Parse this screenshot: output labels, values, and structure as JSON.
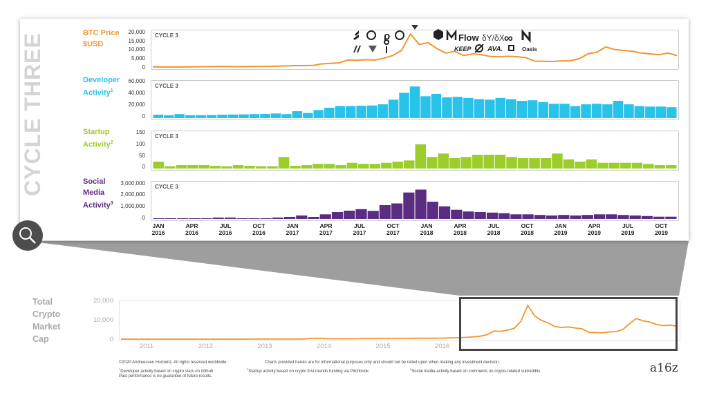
{
  "vertical_title": "CYCLE THREE",
  "cycle_tag": "CYCLE 3",
  "colors": {
    "btc": "#f0952e",
    "dev": "#29c3ea",
    "startup": "#9ccd2b",
    "social": "#5a2d82",
    "grey": "#9a9a9a"
  },
  "panels": [
    {
      "label_lines": [
        "BTC Price",
        "$USD"
      ],
      "sup": "",
      "yticks": [
        "20,000",
        "15,000",
        "10,000",
        "5,000",
        "0"
      ]
    },
    {
      "label_lines": [
        "Developer",
        "Activity"
      ],
      "sup": "1",
      "yticks": [
        "60,000",
        "40,000",
        "20,000",
        "0"
      ]
    },
    {
      "label_lines": [
        "Startup",
        "Activity"
      ],
      "sup": "2",
      "yticks": [
        "150",
        "100",
        "50",
        "0"
      ]
    },
    {
      "label_lines": [
        "Social",
        "Media",
        "Activity"
      ],
      "sup": "3",
      "yticks": [
        "3,000,000",
        "2,000,000",
        "1,000,000",
        "0"
      ]
    }
  ],
  "x_ticks": [
    [
      "JAN",
      "2016"
    ],
    [
      "APR",
      "2016"
    ],
    [
      "JUL",
      "2016"
    ],
    [
      "OCT",
      "2016"
    ],
    [
      "JAN",
      "2017"
    ],
    [
      "APR",
      "2017"
    ],
    [
      "JUL",
      "2017"
    ],
    [
      "OCT",
      "2017"
    ],
    [
      "JAN",
      "2018"
    ],
    [
      "APR",
      "2018"
    ],
    [
      "JUL",
      "2018"
    ],
    [
      "OCT",
      "2018"
    ],
    [
      "JAN",
      "2019"
    ],
    [
      "APR",
      "2019"
    ],
    [
      "JUL",
      "2019"
    ],
    [
      "OCT",
      "2019"
    ]
  ],
  "logos": {
    "flow": "Flow",
    "dydx": "δY/δX",
    "keep": "KEEP",
    "ava": "AVA.",
    "oasis": "Oasis"
  },
  "chart_data": [
    {
      "type": "line",
      "series": [
        {
          "values": [
            450,
            420,
            400,
            410,
            440,
            530,
            620,
            650,
            680,
            610,
            600,
            650,
            700,
            750,
            900,
            1000,
            1200,
            1180,
            1300,
            2200,
            2500,
            2800,
            4500,
            4300,
            4600,
            4400,
            5500,
            7000,
            10000,
            19500,
            13500,
            14500,
            11000,
            8500,
            9500,
            7000,
            8000,
            7500,
            6500,
            6300,
            6600,
            6400,
            5800,
            3800,
            3700,
            3600,
            3900,
            4000,
            5200,
            8000,
            9000,
            12000,
            10500,
            10000,
            9500,
            8500,
            8000,
            7500,
            8500,
            7000
          ]
        }
      ],
      "x_start": "2016-01",
      "x_end": "2019-12",
      "ylim": [
        0,
        20000
      ]
    },
    {
      "type": "bar",
      "values": [
        6000,
        5000,
        7000,
        5000,
        5200,
        5400,
        6000,
        6200,
        6500,
        7000,
        7200,
        8000,
        7000,
        12000,
        9000,
        14000,
        18000,
        21000,
        21000,
        21500,
        22000,
        24000,
        32000,
        44000,
        55000,
        38000,
        42000,
        36000,
        37000,
        35000,
        33000,
        32000,
        35000,
        33000,
        30000,
        31000,
        28000,
        25000,
        25000,
        21000,
        24000,
        25000,
        24000,
        30000,
        24000,
        21000,
        20000,
        20000,
        19000
      ],
      "ylim": [
        0,
        60000
      ]
    },
    {
      "type": "bar",
      "values": [
        30,
        10,
        15,
        15,
        15,
        12,
        10,
        15,
        12,
        10,
        10,
        50,
        12,
        15,
        20,
        20,
        15,
        25,
        20,
        20,
        25,
        30,
        35,
        105,
        50,
        65,
        45,
        50,
        60,
        60,
        60,
        50,
        45,
        45,
        45,
        65,
        40,
        30,
        40,
        25,
        25,
        25,
        25,
        20,
        15,
        15
      ],
      "ylim": [
        0,
        150
      ]
    },
    {
      "type": "bar",
      "values": [
        60000,
        60000,
        60000,
        60000,
        60000,
        120000,
        120000,
        60000,
        60000,
        60000,
        120000,
        180000,
        300000,
        180000,
        400000,
        600000,
        720000,
        850000,
        700000,
        1200000,
        1350000,
        2300000,
        2550000,
        1500000,
        1100000,
        800000,
        650000,
        600000,
        550000,
        500000,
        400000,
        400000,
        350000,
        300000,
        350000,
        300000,
        350000,
        400000,
        400000,
        350000,
        300000,
        250000,
        200000,
        200000
      ],
      "ylim": [
        0,
        3000000
      ]
    },
    {
      "type": "line",
      "title_lines": [
        "Total",
        "Crypto",
        "Market",
        "Cap"
      ],
      "yticks": [
        "20,000",
        "10,000",
        "0"
      ],
      "xticks": [
        "2011",
        "2012",
        "2013",
        "2014",
        "2015",
        "2016"
      ],
      "x_start": "2010",
      "x_end": "2019-12",
      "ylim": [
        0,
        20000
      ],
      "series": [
        {
          "values": [
            0,
            0,
            0,
            0,
            0,
            0,
            5,
            5,
            5,
            0,
            0,
            0,
            0,
            0,
            0,
            0,
            5,
            5,
            10,
            15,
            20,
            25,
            30,
            35,
            40,
            50,
            60,
            80,
            400,
            450,
            300,
            200,
            200,
            150,
            200,
            250,
            300,
            300,
            350,
            400,
            400,
            400,
            400,
            450,
            500,
            450,
            500,
            550,
            600,
            700,
            800,
            1000,
            1300,
            1600,
            2500,
            4500,
            4400,
            5000,
            6000,
            10000,
            18800,
            13000,
            10500,
            9000,
            7000,
            6500,
            6800,
            6200,
            5800,
            3800,
            3600,
            3500,
            4000,
            4200,
            5300,
            8500,
            11500,
            10200,
            9500,
            8200,
            7500,
            7800,
            7200
          ]
        }
      ]
    }
  ],
  "footer": {
    "copyright": "©2020 Andreessen Horowitz. All rights reserved worldwide.",
    "disclaimer": "Charts provided herein are for informational purposes only and should not be relied upon when making any investment decision.",
    "note1": "Developer activity based on crypto stars on Github",
    "note2": "Startup activity based on crypto first rounds funding via Pitchbook",
    "note3": "Social media activity based on comments on crypto-related subreddits",
    "past": "Past performance is no guarantee of future results.",
    "brand": "a16z"
  }
}
